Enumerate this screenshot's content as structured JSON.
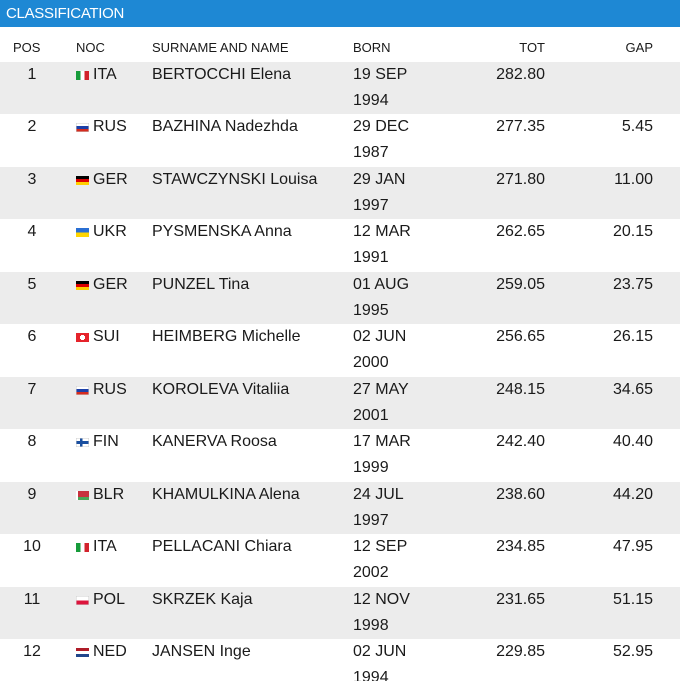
{
  "header": {
    "title": "CLASSIFICATION"
  },
  "table": {
    "columns": [
      "POS",
      "NOC",
      "SURNAME AND NAME",
      "BORN",
      "TOT",
      "GAP"
    ],
    "rows": [
      {
        "pos": 1,
        "noc": "ITA",
        "name": "BERTOCCHI Elena",
        "born": "19 SEP 1994",
        "tot": "282.80"
      },
      {
        "pos": 2,
        "noc": "RUS",
        "name": "BAZHINA Nadezhda",
        "born": "29 DEC 1987",
        "tot": "277.35",
        "gap": "5.45"
      },
      {
        "pos": 3,
        "noc": "GER",
        "name": "STAWCZYNSKI Louisa",
        "born": "29 JAN 1997",
        "tot": "271.80",
        "gap": "11.00"
      },
      {
        "pos": 4,
        "noc": "UKR",
        "name": "PYSMENSKA Anna",
        "born": "12 MAR 1991",
        "tot": "262.65",
        "gap": "20.15"
      },
      {
        "pos": 5,
        "noc": "GER",
        "name": "PUNZEL Tina",
        "born": "01 AUG 1995",
        "tot": "259.05",
        "gap": "23.75"
      },
      {
        "pos": 6,
        "noc": "SUI",
        "name": "HEIMBERG Michelle",
        "born": "02 JUN 2000",
        "tot": "256.65",
        "gap": "26.15"
      },
      {
        "pos": 7,
        "noc": "RUS",
        "name": "KOROLEVA Vitaliia",
        "born": "27 MAY 2001",
        "tot": "248.15",
        "gap": "34.65"
      },
      {
        "pos": 8,
        "noc": "FIN",
        "name": "KANERVA Roosa",
        "born": "17 MAR 1999",
        "tot": "242.40",
        "gap": "40.40"
      },
      {
        "pos": 9,
        "noc": "BLR",
        "name": "KHAMULKINA Alena",
        "born": "24 JUL 1997",
        "tot": "238.60",
        "gap": "44.20"
      },
      {
        "pos": 10,
        "noc": "ITA",
        "name": "PELLACANI Chiara",
        "born": "12 SEP 2002",
        "tot": "234.85",
        "gap": "47.95"
      },
      {
        "pos": 11,
        "noc": "POL",
        "name": "SKRZEK Kaja",
        "born": "12 NOV 1998",
        "tot": "231.65",
        "gap": "51.15"
      },
      {
        "pos": 12,
        "noc": "NED",
        "name": "JANSEN Inge",
        "born": "02 JUN 1994",
        "tot": "229.85",
        "gap": "52.95"
      }
    ]
  }
}
